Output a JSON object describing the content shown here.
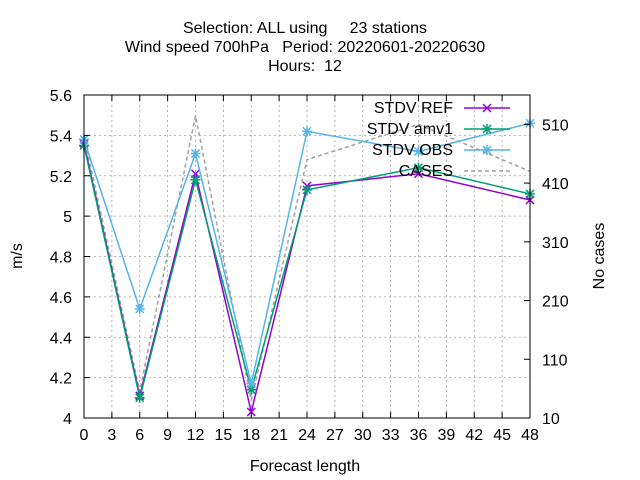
{
  "chart_data": {
    "type": "line",
    "title_lines": [
      "Selection: ALL using     23 stations",
      "Wind speed 700hPa   Period: 20220601-20220630",
      "Hours:  12"
    ],
    "xlabel": "Forecast length",
    "ylabel": "m/s",
    "y2label": "No cases",
    "xlim": [
      0,
      48
    ],
    "ylim": [
      4.0,
      5.6
    ],
    "y2lim": [
      10,
      560
    ],
    "xticks": [
      "0",
      "3",
      "6",
      "9",
      "12",
      "15",
      "18",
      "21",
      "24",
      "27",
      "30",
      "33",
      "36",
      "39",
      "42",
      "45",
      "48"
    ],
    "yticks": [
      "4",
      "4.2",
      "4.4",
      "4.6",
      "4.8",
      "5",
      "5.2",
      "5.4",
      "5.6"
    ],
    "y2ticks": [
      "10",
      "110",
      "210",
      "310",
      "410",
      "510"
    ],
    "grid": true,
    "legend_position": "top-right",
    "x": [
      0,
      6,
      12,
      18,
      24,
      36,
      48
    ],
    "series": [
      {
        "name": "STDV REF",
        "color": "#9400d3",
        "marker": "cross",
        "values": [
          5.36,
          4.11,
          5.21,
          4.03,
          5.15,
          5.21,
          5.08
        ]
      },
      {
        "name": "STDV amv1",
        "color": "#009e73",
        "marker": "star",
        "values": [
          5.35,
          4.1,
          5.18,
          4.14,
          5.13,
          5.24,
          5.11
        ]
      },
      {
        "name": "STDV OBS",
        "color": "#56b4e9",
        "marker": "star",
        "values": [
          5.38,
          4.54,
          5.31,
          4.17,
          5.42,
          5.32,
          5.46
        ]
      }
    ],
    "cases": {
      "name": "CASES",
      "color": "#a0a0a0",
      "dash": "4,3",
      "x": [
        0,
        6,
        12,
        18,
        24,
        36,
        48
      ],
      "values": [
        490,
        55,
        525,
        40,
        450,
        510,
        430
      ]
    }
  }
}
